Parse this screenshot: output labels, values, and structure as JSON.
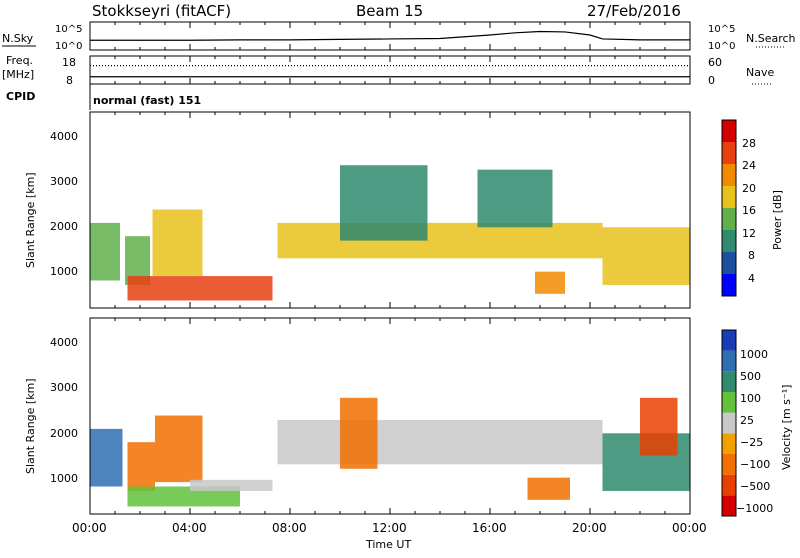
{
  "header": {
    "station": "Stokkseyri (fitACF)",
    "beam": "Beam 15",
    "date": "27/Feb/2016"
  },
  "chart_data": [
    {
      "type": "line",
      "name": "nsky-panel",
      "ylabel_left": "N.Sky",
      "ylabel_right": "N.Search",
      "yticks_left": [
        "10^5",
        "10^0"
      ],
      "yticks_right": [
        "10^5",
        "10^0"
      ],
      "series": [
        {
          "name": "N.Sky",
          "style": "solid",
          "x_hours": [
            0,
            2,
            4,
            6,
            8,
            10,
            12,
            14,
            16,
            17,
            18,
            19,
            20,
            20.5,
            22,
            24
          ],
          "values_log": [
            1.3,
            1.3,
            1.3,
            1.4,
            1.4,
            1.5,
            1.6,
            1.7,
            2.5,
            3.0,
            3.3,
            3.2,
            2.5,
            1.6,
            1.4,
            1.4
          ]
        }
      ]
    },
    {
      "type": "line",
      "name": "freq-panel",
      "ylabel_left": "Freq.",
      "ylabel_left_unit": "[MHz]",
      "ylabel_right": "Nave",
      "yticks_left": [
        "18",
        "8"
      ],
      "yticks_right": [
        "60",
        "0"
      ],
      "series": [
        {
          "name": "Freq",
          "style": "solid",
          "x_hours": [
            0,
            24
          ],
          "values": [
            10.2,
            10.2
          ]
        },
        {
          "name": "Nave",
          "style": "dotted",
          "x_hours": [
            0,
            24
          ],
          "values": [
            41,
            41
          ]
        }
      ]
    },
    {
      "type": "heatmap",
      "name": "power-panel",
      "cpid_label": "CPID",
      "cpid_text": "normal (fast) 151",
      "ylabel": "Slant Range [km]",
      "y_ticks": [
        "4000",
        "3000",
        "2000",
        "1000"
      ],
      "ylim_km": [
        180,
        4600
      ],
      "colorbar_label": "Power [dB]",
      "colorbar_ticks": [
        "28",
        "24",
        "20",
        "16",
        "12",
        "8",
        "4"
      ],
      "colors": [
        "#0000ff",
        "#1e50a0",
        "#2f8a6e",
        "#62b04c",
        "#e8c21b",
        "#f28a00",
        "#e84010",
        "#d40000"
      ],
      "echo_regions": [
        {
          "t0": 0.0,
          "t1": 1.2,
          "r0": 800,
          "r1": 2100,
          "level": 3
        },
        {
          "t0": 1.4,
          "t1": 2.4,
          "r0": 700,
          "r1": 1800,
          "level": 3
        },
        {
          "t0": 2.5,
          "t1": 4.5,
          "r0": 900,
          "r1": 2400,
          "level": 4
        },
        {
          "t0": 1.5,
          "t1": 7.3,
          "r0": 350,
          "r1": 900,
          "level": 6
        },
        {
          "t0": 7.5,
          "t1": 20.5,
          "r0": 1300,
          "r1": 2100,
          "level": 4
        },
        {
          "t0": 10.0,
          "t1": 13.5,
          "r0": 1700,
          "r1": 3400,
          "level": 2
        },
        {
          "t0": 15.5,
          "t1": 18.5,
          "r0": 2000,
          "r1": 3300,
          "level": 2
        },
        {
          "t0": 17.8,
          "t1": 19.0,
          "r0": 500,
          "r1": 1000,
          "level": 5
        },
        {
          "t0": 20.5,
          "t1": 24.0,
          "r0": 700,
          "r1": 2000,
          "level": 4
        }
      ]
    },
    {
      "type": "heatmap",
      "name": "velocity-panel",
      "ylabel": "Slant Range [km]",
      "y_ticks": [
        "4000",
        "3000",
        "2000",
        "1000"
      ],
      "ylim_km": [
        180,
        4600
      ],
      "colorbar_label": "Velocity [m s⁻¹]",
      "colorbar_ticks": [
        "1000",
        "500",
        "100",
        "25",
        "−25",
        "−100",
        "−500",
        "−1000"
      ],
      "colors": [
        "#1a3cb4",
        "#2f6eb0",
        "#2f8a6e",
        "#62c23c",
        "#c8c8c8",
        "#f2a000",
        "#f27000",
        "#e84000",
        "#d40000"
      ],
      "echo_regions": [
        {
          "t0": 0.0,
          "t1": 1.3,
          "r0": 800,
          "r1": 2100,
          "level": 1
        },
        {
          "t0": 1.5,
          "t1": 2.6,
          "r0": 700,
          "r1": 1800,
          "level": 6
        },
        {
          "t0": 2.6,
          "t1": 4.5,
          "r0": 900,
          "r1": 2400,
          "level": 6
        },
        {
          "t0": 1.5,
          "t1": 6.0,
          "r0": 350,
          "r1": 800,
          "level": 3
        },
        {
          "t0": 4.0,
          "t1": 7.3,
          "r0": 700,
          "r1": 950,
          "level": 4
        },
        {
          "t0": 7.5,
          "t1": 20.5,
          "r0": 1300,
          "r1": 2300,
          "level": 4
        },
        {
          "t0": 10.0,
          "t1": 11.5,
          "r0": 1200,
          "r1": 2800,
          "level": 6
        },
        {
          "t0": 17.5,
          "t1": 19.2,
          "r0": 500,
          "r1": 1000,
          "level": 6
        },
        {
          "t0": 20.5,
          "t1": 24.0,
          "r0": 700,
          "r1": 2000,
          "level": 2
        },
        {
          "t0": 22.0,
          "t1": 23.5,
          "r0": 1500,
          "r1": 2800,
          "level": 7
        }
      ]
    }
  ],
  "time_axis": {
    "label": "Time UT",
    "ticks": [
      "00:00",
      "04:00",
      "08:00",
      "12:00",
      "16:00",
      "20:00",
      "00:00"
    ],
    "tick_hours": [
      0,
      4,
      8,
      12,
      16,
      20,
      24
    ]
  }
}
